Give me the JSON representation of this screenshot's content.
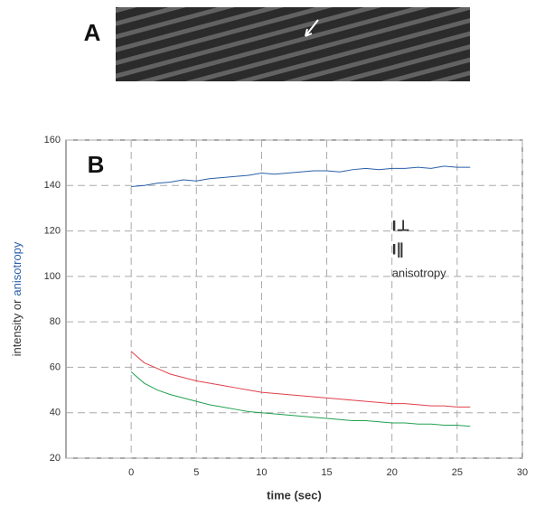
{
  "image_panel": {
    "label": "A"
  },
  "chart_data": {
    "type": "line",
    "panel_label": "B",
    "xlabel": "time (sec)",
    "ylabel": [
      "intensity or",
      "anisotropy"
    ],
    "xlim": [
      -5,
      30
    ],
    "xticks": [
      0,
      5,
      10,
      15,
      20,
      25,
      30
    ],
    "ylim": [
      20,
      160
    ],
    "yticks": [
      20,
      40,
      60,
      80,
      100,
      120,
      140,
      160
    ],
    "grid": true,
    "legend": "center-right",
    "x": [
      0,
      1,
      2,
      3,
      4,
      5,
      6,
      7,
      8,
      9,
      10,
      11,
      12,
      13,
      14,
      15,
      16,
      17,
      18,
      19,
      20,
      21,
      22,
      23,
      24,
      25,
      26
    ],
    "series": [
      {
        "name": "I⊥",
        "color": "#e0404a",
        "values": [
          67,
          62,
          59.5,
          57,
          55.5,
          54,
          53,
          52,
          51,
          50,
          49,
          48.5,
          48,
          47.5,
          47,
          46.5,
          46,
          45.5,
          45,
          44.5,
          44,
          44,
          43.5,
          43,
          43,
          42.5,
          42.5
        ]
      },
      {
        "name": "I∥",
        "color": "#22a050",
        "values": [
          58,
          53,
          50,
          48,
          46.5,
          45,
          43.5,
          42.5,
          41.5,
          40.5,
          40,
          39.5,
          39,
          38.5,
          38,
          37.5,
          37,
          36.5,
          36.5,
          36,
          35.5,
          35.5,
          35,
          35,
          34.5,
          34.5,
          34
        ]
      },
      {
        "name": "anisotropy",
        "color": "#2a5fa8",
        "values": [
          139.5,
          140,
          141,
          141.5,
          142.5,
          142,
          143,
          143.5,
          144,
          144.5,
          145.5,
          145,
          145.5,
          146,
          146.5,
          146.5,
          146,
          147,
          147.5,
          147,
          147.5,
          147.5,
          148,
          147.5,
          148.5,
          148,
          148
        ]
      }
    ]
  }
}
